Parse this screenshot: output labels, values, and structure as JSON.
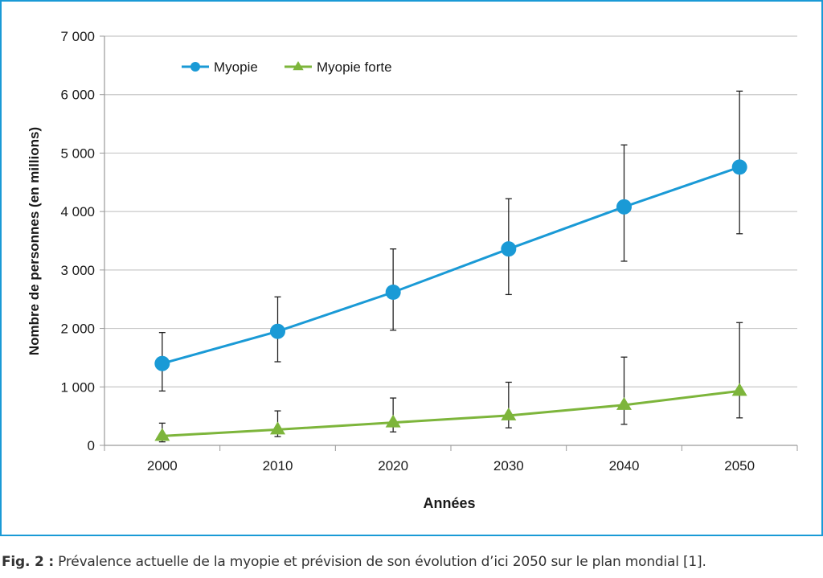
{
  "chart_data": {
    "type": "line",
    "xlabel": "Années",
    "ylabel": "Nombre de personnes (en millions)",
    "x": [
      2000,
      2010,
      2020,
      2030,
      2040,
      2050
    ],
    "x_tick_labels": [
      "2000",
      "2010",
      "2020",
      "2030",
      "2040",
      "2050"
    ],
    "ylim": [
      0,
      7000
    ],
    "y_ticks": [
      0,
      1000,
      2000,
      3000,
      4000,
      5000,
      6000,
      7000
    ],
    "y_tick_labels": [
      "0",
      "1 000",
      "2 000",
      "3 000",
      "4 000",
      "5 000",
      "6 000",
      "7 000"
    ],
    "grid": true,
    "legend_position": "top-left",
    "series": [
      {
        "name": "Myopie",
        "color": "#1a9ad6",
        "marker": "circle",
        "values": [
          1400,
          1950,
          2620,
          3360,
          4080,
          4760
        ],
        "error_low": [
          930,
          1430,
          1970,
          2580,
          3150,
          3620
        ],
        "error_high": [
          1930,
          2540,
          3360,
          4220,
          5140,
          6060
        ]
      },
      {
        "name": "Myopie forte",
        "color": "#7db53b",
        "marker": "triangle",
        "values": [
          160,
          270,
          390,
          510,
          690,
          930
        ],
        "error_low": [
          60,
          150,
          230,
          300,
          360,
          470
        ],
        "error_high": [
          380,
          590,
          810,
          1080,
          1510,
          2100
        ]
      }
    ]
  },
  "caption": {
    "label": "Fig. 2 :",
    "text": " Prévalence actuelle de la myopie et prévision de son évolution d’ici 2050 sur le plan mondial [1]."
  }
}
